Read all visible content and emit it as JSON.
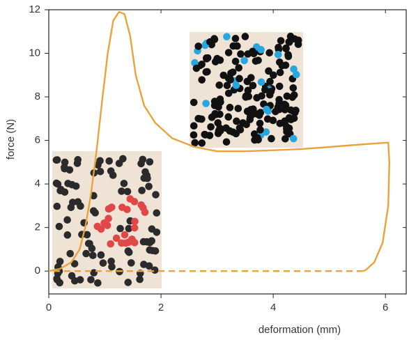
{
  "chart_data": {
    "type": "line",
    "x_label": "deformation (mm)",
    "y_label": "force (N)",
    "xlim": [
      0,
      6.37
    ],
    "ylim": [
      -1.05,
      12
    ],
    "xticks": [
      0,
      2,
      4,
      6
    ],
    "yticks": [
      0,
      2,
      4,
      6,
      8,
      10,
      12
    ],
    "series": [
      {
        "color": "#e8a33d",
        "dash": false,
        "x": [
          0,
          0.2,
          0.4,
          0.55,
          0.65,
          0.75,
          0.85,
          0.95,
          1.05,
          1.15,
          1.25,
          1.35,
          1.45,
          1.55,
          1.7,
          1.9,
          2.2,
          2.6,
          3.0,
          3.5,
          4.0,
          4.5,
          5.0,
          5.5,
          6.05,
          6.07,
          6.05,
          5.95,
          5.8,
          5.65,
          5.6
        ],
        "values": [
          0,
          0.1,
          0.4,
          1,
          2,
          3.5,
          5.5,
          7.8,
          10,
          11.5,
          11.9,
          11.8,
          10.8,
          9,
          7.6,
          6.8,
          6.1,
          5.7,
          5.5,
          5.5,
          5.55,
          5.6,
          5.7,
          5.8,
          5.9,
          5,
          3,
          1.3,
          0.4,
          0.05,
          0
        ]
      },
      {
        "color": "#e8a33d",
        "dash": true,
        "x": [
          5.6,
          0
        ],
        "values": [
          0,
          0
        ]
      }
    ]
  }
}
